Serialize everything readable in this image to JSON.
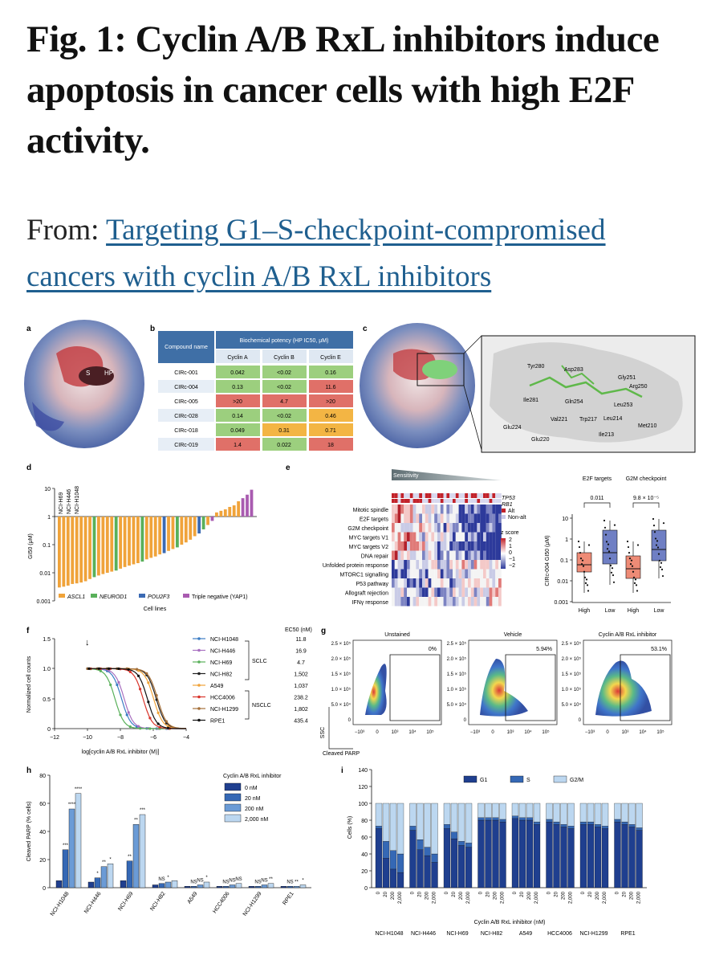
{
  "header": {
    "title": "Fig. 1: Cyclin A/B RxL inhibitors induce apoptosis in cancer cells with high E2F activity.",
    "from_label": "From: ",
    "article_link": "Targeting G1–S-checkpoint-compromised cancers with cyclin A/B RxL inhibitors"
  },
  "panels": {
    "a": {
      "letter": "a",
      "labels": [
        "S",
        "HP"
      ]
    },
    "b": {
      "letter": "b",
      "col_compound": "Compound name",
      "col_potency": "Biochemical potency (HP IC50, μM)",
      "subcols": [
        "Cyclin A",
        "Cyclin B",
        "Cyclin E"
      ],
      "rows": [
        {
          "name": "CIRc-001",
          "vals": [
            "0.042",
            "<0.02",
            "0.16"
          ],
          "colors": [
            "#9ccf7e",
            "#9ccf7e",
            "#9ccf7e"
          ]
        },
        {
          "name": "CIRc-004",
          "vals": [
            "0.13",
            "<0.02",
            "11.6"
          ],
          "colors": [
            "#9ccf7e",
            "#9ccf7e",
            "#e07068"
          ]
        },
        {
          "name": "CIRc-005",
          "vals": [
            ">20",
            "4.7",
            ">20"
          ],
          "colors": [
            "#e07068",
            "#e07068",
            "#e07068"
          ]
        },
        {
          "name": "CIRc-028",
          "vals": [
            "0.14",
            "<0.02",
            "0.46"
          ],
          "colors": [
            "#9ccf7e",
            "#9ccf7e",
            "#f3b544"
          ]
        },
        {
          "name": "CIRc-018",
          "vals": [
            "0.049",
            "0.31",
            "0.71"
          ],
          "colors": [
            "#9ccf7e",
            "#f3b544",
            "#f3b544"
          ]
        },
        {
          "name": "CIRc-019",
          "vals": [
            "1.4",
            "0.022",
            "18"
          ],
          "colors": [
            "#e07068",
            "#9ccf7e",
            "#e07068"
          ]
        }
      ]
    },
    "c": {
      "letter": "c",
      "residues": [
        "Tyr280",
        "Asp283",
        "Gly251",
        "Arg250",
        "Ile281",
        "Gln254",
        "Leu253",
        "Val221",
        "Trp217",
        "Leu214",
        "Met210",
        "Glu224",
        "Glu220",
        "Ile213"
      ]
    },
    "d": {
      "letter": "d",
      "ylabel": "GI50 (μM)",
      "xlabel": "Cell lines",
      "yticks": [
        "10",
        "1",
        "0.1",
        "0.01",
        "0.001"
      ],
      "line_labels": [
        "NCI-H69",
        "NCI-H446",
        "NCI-H1048"
      ],
      "legend": [
        "ASCL1",
        "NEUROD1",
        "POU2F3",
        "Triple negative (YAP1)"
      ]
    },
    "e": {
      "letter": "e",
      "sensitivity": "Sensitivity",
      "pathways": [
        "Mitotic spindle",
        "E2F targets",
        "G2M checkpoint",
        "MYC targets V1",
        "MYC targets V2",
        "DNA repair",
        "Unfolded protein response",
        "MTORC1 signalling",
        "P53 pathway",
        "Allograft rejection",
        "IFNγ response"
      ],
      "row_tags": [
        "TP53",
        "RB1"
      ],
      "alt_legend": [
        "Alt",
        "Non-alt"
      ],
      "zscore_title": "z score",
      "zscore_ticks": [
        "2",
        "1",
        "0",
        "−1",
        "−2"
      ],
      "box_titles": [
        "E2F targets",
        "G2M checkpoint"
      ],
      "box_pvals": [
        "0.011",
        "9.8 × 10⁻⁵"
      ],
      "box_ylabel": "CIRc-004 GI50 (μM)",
      "box_yticks": [
        "10",
        "1",
        "0.1",
        "0.01",
        "0.001"
      ],
      "box_xticks": [
        "High",
        "Low",
        "High",
        "Low"
      ]
    },
    "f": {
      "letter": "f",
      "ylabel": "Normalized cell counts",
      "xlabel": "log[cyclin A/B RxL inhibitor (M)]",
      "yticks": [
        "1.5",
        "1.0",
        "0.5",
        "0"
      ],
      "xticks": [
        "−12",
        "−10",
        "−8",
        "−6",
        "−4"
      ],
      "ec50_header": "EC50 (nM)",
      "lines": [
        {
          "name": "NCI-H1048",
          "ec50": "11.8",
          "color": "#3b7dc4"
        },
        {
          "name": "NCI-H446",
          "ec50": "16.9",
          "color": "#a86fc0"
        },
        {
          "name": "NCI-H69",
          "ec50": "4.7",
          "color": "#59b05a"
        },
        {
          "name": "NCI-H82",
          "ec50": "1,502",
          "color": "#222222"
        },
        {
          "name": "A549",
          "ec50": "1,037",
          "color": "#f0a33a"
        },
        {
          "name": "HCC4006",
          "ec50": "238.2",
          "color": "#d9342b"
        },
        {
          "name": "NCI-H1299",
          "ec50": "1,802",
          "color": "#a5703a"
        },
        {
          "name": "RPE1",
          "ec50": "435.4",
          "color": "#111111"
        }
      ],
      "groups": [
        "SCLC",
        "NSCLC"
      ]
    },
    "g": {
      "letter": "g",
      "titles": [
        "Unstained",
        "Vehicle",
        "Cyclin A/B RxL inhibitor"
      ],
      "percents": [
        "0%",
        "5.94%",
        "53.1%"
      ],
      "yticks": [
        "2.5 × 10⁵",
        "2.0 × 10⁵",
        "1.5 × 10⁵",
        "1.0 × 10⁵",
        "5.0 × 10⁴",
        "0"
      ],
      "xticks": [
        "−10³",
        "0",
        "10³",
        "10⁴",
        "10⁵"
      ],
      "ylabel": "SSC",
      "xlabel": "Cleaved PARP"
    },
    "h": {
      "letter": "h",
      "ylabel": "Cleaved PARP (% cells)",
      "yticks": [
        "80",
        "60",
        "40",
        "20",
        "0"
      ],
      "legend_title": "Cyclin A/B RxL inhibitor",
      "legend": [
        "0 nM",
        "20 nM",
        "200 nM",
        "2,000 nM"
      ],
      "cells": [
        "NCI-H1048",
        "NCI-H446",
        "NCI-H69",
        "NCI-H82",
        "A549",
        "HCC4006",
        "NCI-H1299",
        "RPE1"
      ]
    },
    "i": {
      "letter": "i",
      "ylabel": "Cells (%)",
      "yticks": [
        "140",
        "120",
        "100",
        "80",
        "60",
        "40",
        "20",
        "0"
      ],
      "legend": [
        "G1",
        "S",
        "G2/M"
      ],
      "doses": [
        "0",
        "20",
        "200",
        "2,000"
      ],
      "xlabel": "Cyclin A/B RxL inhibitor (nM)",
      "cells": [
        "NCI-H1048",
        "NCI-H446",
        "NCI-H69",
        "NCI-H82",
        "A549",
        "HCC4006",
        "NCI-H1299",
        "RPE1"
      ]
    }
  },
  "chart_data": [
    {
      "type": "bar",
      "panel": "h",
      "title": "Cleaved PARP",
      "ylabel": "Cleaved PARP (% cells)",
      "ylim": [
        0,
        80
      ],
      "categories": [
        "NCI-H1048",
        "NCI-H446",
        "NCI-H69",
        "NCI-H82",
        "A549",
        "HCC4006",
        "NCI-H1299",
        "RPE1"
      ],
      "series": [
        {
          "name": "0 nM",
          "values": [
            5,
            4,
            5,
            2,
            1,
            1,
            1,
            1
          ]
        },
        {
          "name": "20 nM",
          "values": [
            27,
            7,
            19,
            3,
            1,
            1,
            1,
            1
          ]
        },
        {
          "name": "200 nM",
          "values": [
            56,
            15,
            45,
            4,
            2,
            2,
            2,
            1
          ]
        },
        {
          "name": "2,000 nM",
          "values": [
            67,
            17,
            52,
            5,
            4,
            3,
            3,
            2
          ]
        }
      ],
      "significance": [
        [
          "",
          "***",
          "****",
          "****"
        ],
        [
          "",
          "*",
          "**",
          "*"
        ],
        [
          "",
          "**",
          "**",
          "***"
        ],
        [
          "",
          "NS",
          "*",
          ""
        ],
        [
          "",
          "NS",
          "NS",
          "*"
        ],
        [
          "",
          "NS",
          "NS",
          "NS"
        ],
        [
          "",
          "NS",
          "NS",
          "**"
        ],
        [
          "",
          "NS",
          "**",
          "*"
        ]
      ]
    },
    {
      "type": "bar",
      "panel": "i",
      "stacked": true,
      "ylabel": "Cells (%)",
      "ylim": [
        0,
        140
      ],
      "categories": [
        "NCI-H1048",
        "NCI-H446",
        "NCI-H69",
        "NCI-H82",
        "A549",
        "HCC4006",
        "NCI-H1299",
        "RPE1"
      ],
      "doses": [
        "0",
        "20",
        "200",
        "2,000"
      ],
      "series": [
        {
          "name": "G1",
          "values": [
            [
              70,
              35,
              22,
              18
            ],
            [
              68,
              45,
              38,
              30
            ],
            [
              70,
              58,
              50,
              48
            ],
            [
              80,
              80,
              80,
              78
            ],
            [
              82,
              80,
              80,
              75
            ],
            [
              78,
              75,
              72,
              70
            ],
            [
              75,
              75,
              72,
              70
            ],
            [
              78,
              75,
              72,
              68
            ]
          ]
        },
        {
          "name": "S",
          "values": [
            [
              3,
              20,
              22,
              22
            ],
            [
              5,
              12,
              10,
              10
            ],
            [
              5,
              8,
              5,
              5
            ],
            [
              3,
              3,
              3,
              3
            ],
            [
              3,
              3,
              3,
              3
            ],
            [
              3,
              3,
              3,
              3
            ],
            [
              3,
              3,
              3,
              3
            ],
            [
              3,
              3,
              3,
              3
            ]
          ]
        },
        {
          "name": "G2/M",
          "values": [
            [
              27,
              45,
              56,
              60
            ],
            [
              27,
              43,
              52,
              60
            ],
            [
              25,
              34,
              45,
              47
            ],
            [
              17,
              17,
              17,
              19
            ],
            [
              15,
              17,
              17,
              22
            ],
            [
              19,
              22,
              25,
              27
            ],
            [
              22,
              22,
              25,
              27
            ],
            [
              19,
              22,
              25,
              29
            ]
          ]
        }
      ]
    },
    {
      "type": "bar",
      "panel": "d",
      "ylabel": "GI50 (μM)",
      "xlabel": "Cell lines",
      "log_y": true,
      "ylim": [
        0.001,
        10
      ],
      "values": [
        0.003,
        0.0032,
        0.0035,
        0.004,
        0.0042,
        0.0045,
        0.005,
        0.006,
        0.007,
        0.008,
        0.009,
        0.01,
        0.011,
        0.012,
        0.014,
        0.016,
        0.018,
        0.02,
        0.022,
        0.025,
        0.03,
        0.034,
        0.038,
        0.045,
        0.05,
        0.06,
        0.07,
        0.08,
        0.1,
        0.12,
        0.15,
        0.2,
        0.25,
        0.35,
        0.5,
        0.7,
        1.4,
        1.6,
        1.8,
        2.2,
        2.5,
        3.5,
        4.5,
        6,
        9
      ],
      "colors": [
        "#f0a33a",
        "#f0a33a",
        "#f0a33a",
        "#f0a33a",
        "#f0a33a",
        "#f0a33a",
        "#f0a33a",
        "#f0a33a",
        "#59b05a",
        "#f0a33a",
        "#f0a33a",
        "#f0a33a",
        "#f0a33a",
        "#59b05a",
        "#f0a33a",
        "#f0a33a",
        "#f0a33a",
        "#f0a33a",
        "#f0a33a",
        "#59b05a",
        "#f0a33a",
        "#f0a33a",
        "#f0a33a",
        "#f0a33a",
        "#3b6ab3",
        "#f0a33a",
        "#f0a33a",
        "#59b05a",
        "#f0a33a",
        "#f0a33a",
        "#f0a33a",
        "#f0a33a",
        "#3b6ab3",
        "#59b05a",
        "#f0a33a",
        "#a95bb0",
        "#f0a33a",
        "#f0a33a",
        "#f0a33a",
        "#f0a33a",
        "#f0a33a",
        "#f0a33a",
        "#a95bb0",
        "#a95bb0",
        "#a95bb0"
      ]
    }
  ]
}
